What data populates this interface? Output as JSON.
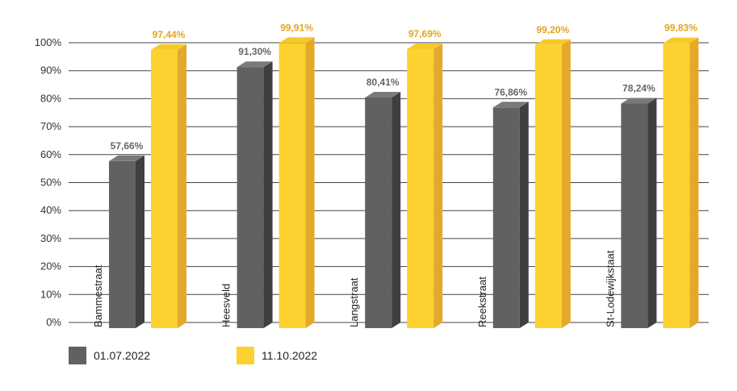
{
  "chart_data": {
    "type": "bar",
    "categories": [
      "Bammestraat",
      "Heesveld",
      "Langstraat",
      "Reekstraat",
      "St-Lodewijkstaat"
    ],
    "series": [
      {
        "name": "01.07.2022",
        "values": [
          57.66,
          91.3,
          80.41,
          76.86,
          78.24
        ],
        "labels": [
          "57,66%",
          "91,30%",
          "80,41%",
          "76,86%",
          "78,24%"
        ],
        "color": "#616161",
        "side_color": "#3f3f3f",
        "top_color": "#7a7a7a",
        "label_color": "#666666"
      },
      {
        "name": "11.10.2022",
        "values": [
          97.44,
          99.91,
          97.69,
          99.2,
          99.83
        ],
        "labels": [
          "97,44%",
          "99,91%",
          "97,69%",
          "99,20%",
          "99,83%"
        ],
        "color": "#fdd130",
        "side_color": "#e3a92a",
        "top_color": "#f6c92b",
        "label_color": "#e2a521"
      }
    ],
    "yticks": [
      "0%",
      "10%",
      "20%",
      "30%",
      "40%",
      "50%",
      "60%",
      "70%",
      "80%",
      "90%",
      "100%"
    ],
    "ylim": [
      0,
      100
    ],
    "grid": true,
    "legend_position": "bottom-left"
  }
}
